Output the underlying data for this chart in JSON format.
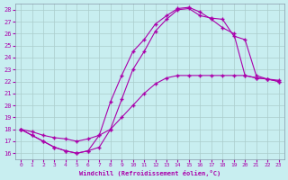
{
  "xlabel": "Windchill (Refroidissement éolien,°C)",
  "bg_color": "#c8eef0",
  "line_color": "#aa00aa",
  "grid_color": "#aacccc",
  "xlim": [
    -0.5,
    23.5
  ],
  "ylim": [
    15.5,
    28.5
  ],
  "xticks": [
    0,
    1,
    2,
    3,
    4,
    5,
    6,
    7,
    8,
    9,
    10,
    11,
    12,
    13,
    14,
    15,
    16,
    17,
    18,
    19,
    20,
    21,
    22,
    23
  ],
  "yticks": [
    16,
    17,
    18,
    19,
    20,
    21,
    22,
    23,
    24,
    25,
    26,
    27,
    28
  ],
  "line1_x": [
    0,
    1,
    2,
    3,
    4,
    5,
    6,
    7,
    8,
    9,
    10,
    11,
    12,
    13,
    14,
    15,
    16,
    17,
    18,
    19,
    20,
    21,
    22,
    23
  ],
  "line1_y": [
    18.0,
    17.5,
    17.0,
    16.5,
    16.2,
    16.0,
    16.2,
    16.5,
    18.0,
    20.5,
    23.0,
    24.5,
    26.2,
    27.2,
    28.0,
    28.1,
    27.5,
    27.3,
    27.2,
    25.8,
    25.5,
    22.5,
    22.2,
    22.1
  ],
  "line2_x": [
    0,
    1,
    2,
    3,
    4,
    5,
    6,
    7,
    8,
    9,
    10,
    11,
    12,
    13,
    14,
    15,
    16,
    17,
    18,
    19,
    20,
    21,
    22,
    23
  ],
  "line2_y": [
    18.0,
    17.8,
    17.5,
    17.3,
    17.2,
    17.0,
    17.2,
    17.5,
    18.0,
    19.0,
    20.0,
    21.0,
    21.8,
    22.3,
    22.5,
    22.5,
    22.5,
    22.5,
    22.5,
    22.5,
    22.5,
    22.3,
    22.2,
    22.0
  ],
  "line3_x": [
    0,
    1,
    2,
    3,
    4,
    5,
    6,
    7,
    8,
    9,
    10,
    11,
    12,
    13,
    14,
    15,
    16,
    17,
    18,
    19,
    20,
    21,
    22,
    23
  ],
  "line3_y": [
    18.0,
    17.5,
    17.0,
    16.5,
    16.2,
    16.0,
    16.2,
    17.5,
    20.3,
    22.5,
    24.5,
    25.5,
    26.8,
    27.5,
    28.1,
    28.2,
    27.8,
    27.2,
    26.5,
    26.0,
    22.5,
    22.3,
    22.2,
    22.0
  ]
}
